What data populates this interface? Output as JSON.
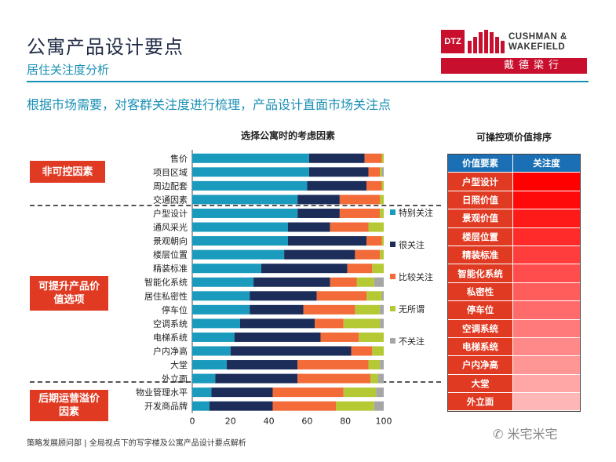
{
  "header": {
    "title": "公寓产品设计要点",
    "subtitle": "居住关注度分析",
    "logo_dtz": "DTZ",
    "logo_line1": "CUSHMAN &",
    "logo_line2": "WAKEFIELD",
    "logo_cn": "戴德梁行"
  },
  "headline": "根据市场需要，对客群关注度进行梳理，产品设计直面市场关注点",
  "categories_boxes": {
    "uncontrollable": "非可控因素",
    "improvable": "可提升产品价值选项",
    "operational": "后期运营溢价因素"
  },
  "chart_data": {
    "type": "bar",
    "orientation": "horizontal",
    "stacked": true,
    "title": "选择公寓时的考虑因素",
    "categories": [
      "售价",
      "项目区域",
      "周边配套",
      "交通因素",
      "户型设计",
      "通风采光",
      "景观朝向",
      "楼层位置",
      "精装标准",
      "智能化系统",
      "居住私密性",
      "停车位",
      "空调系统",
      "电梯系统",
      "户内净高",
      "大堂",
      "外立面",
      "物业管理水平",
      "开发商品牌"
    ],
    "series": [
      {
        "name": "特别关注",
        "color": "#1a9bbd",
        "values": [
          61,
          61,
          60,
          55,
          55,
          50,
          50,
          48,
          36,
          32,
          30,
          30,
          25,
          22,
          20,
          18,
          12,
          10,
          9
        ]
      },
      {
        "name": "很关注",
        "color": "#1c2d5a",
        "values": [
          29,
          31,
          31,
          22,
          22,
          22,
          41,
          37,
          45,
          40,
          35,
          28,
          39,
          45,
          63,
          37,
          43,
          32,
          33
        ]
      },
      {
        "name": "比较关注",
        "color": "#f26b38",
        "values": [
          9,
          6,
          8,
          21,
          21,
          20,
          8,
          13,
          13,
          14,
          26,
          27,
          15,
          20,
          11,
          37,
          38,
          37,
          33
        ]
      },
      {
        "name": "无所谓",
        "color": "#b5c934",
        "values": [
          1,
          1,
          1,
          2,
          2,
          8,
          1,
          2,
          6,
          9,
          8,
          13,
          19,
          13,
          6,
          6,
          4,
          17,
          20
        ]
      },
      {
        "name": "不关注",
        "color": "#a6a6a6",
        "values": [
          0,
          1,
          0,
          0,
          0,
          0,
          0,
          0,
          0,
          5,
          1,
          2,
          2,
          0,
          0,
          2,
          3,
          4,
          5
        ]
      }
    ],
    "xlim": [
      0,
      100
    ],
    "xticks": [
      0,
      20,
      40,
      60,
      80,
      100
    ],
    "legend_position": "right"
  },
  "ranking": {
    "title": "可操控项价值排序",
    "col1": "价值要素",
    "col2": "关注度",
    "rows": [
      {
        "label": "户型设计",
        "color": "#ff0000"
      },
      {
        "label": "日照价值",
        "color": "#ff0a0a"
      },
      {
        "label": "景观价值",
        "color": "#ff1a1a"
      },
      {
        "label": "楼层位置",
        "color": "#ff2b2b"
      },
      {
        "label": "精装标准",
        "color": "#ff3d3d"
      },
      {
        "label": "智能化系统",
        "color": "#ff4d4d"
      },
      {
        "label": "私密性",
        "color": "#ff5c5c"
      },
      {
        "label": "停车位",
        "color": "#ff6b6b"
      },
      {
        "label": "空调系统",
        "color": "#ff7a7a"
      },
      {
        "label": "电梯系统",
        "color": "#ff8888"
      },
      {
        "label": "户内净高",
        "color": "#ff9696"
      },
      {
        "label": "大堂",
        "color": "#ffa6a6"
      },
      {
        "label": "外立面",
        "color": "#ffb6b6"
      }
    ]
  },
  "footer": "策略发展顾问部 | 全局视点下的写字楼及公寓产品设计要点解析",
  "watermark": "米宅米宅",
  "colors": {
    "accent": "#1a8fb5",
    "label_bg": "#e03a22",
    "table_header": "#1a6fb5"
  }
}
